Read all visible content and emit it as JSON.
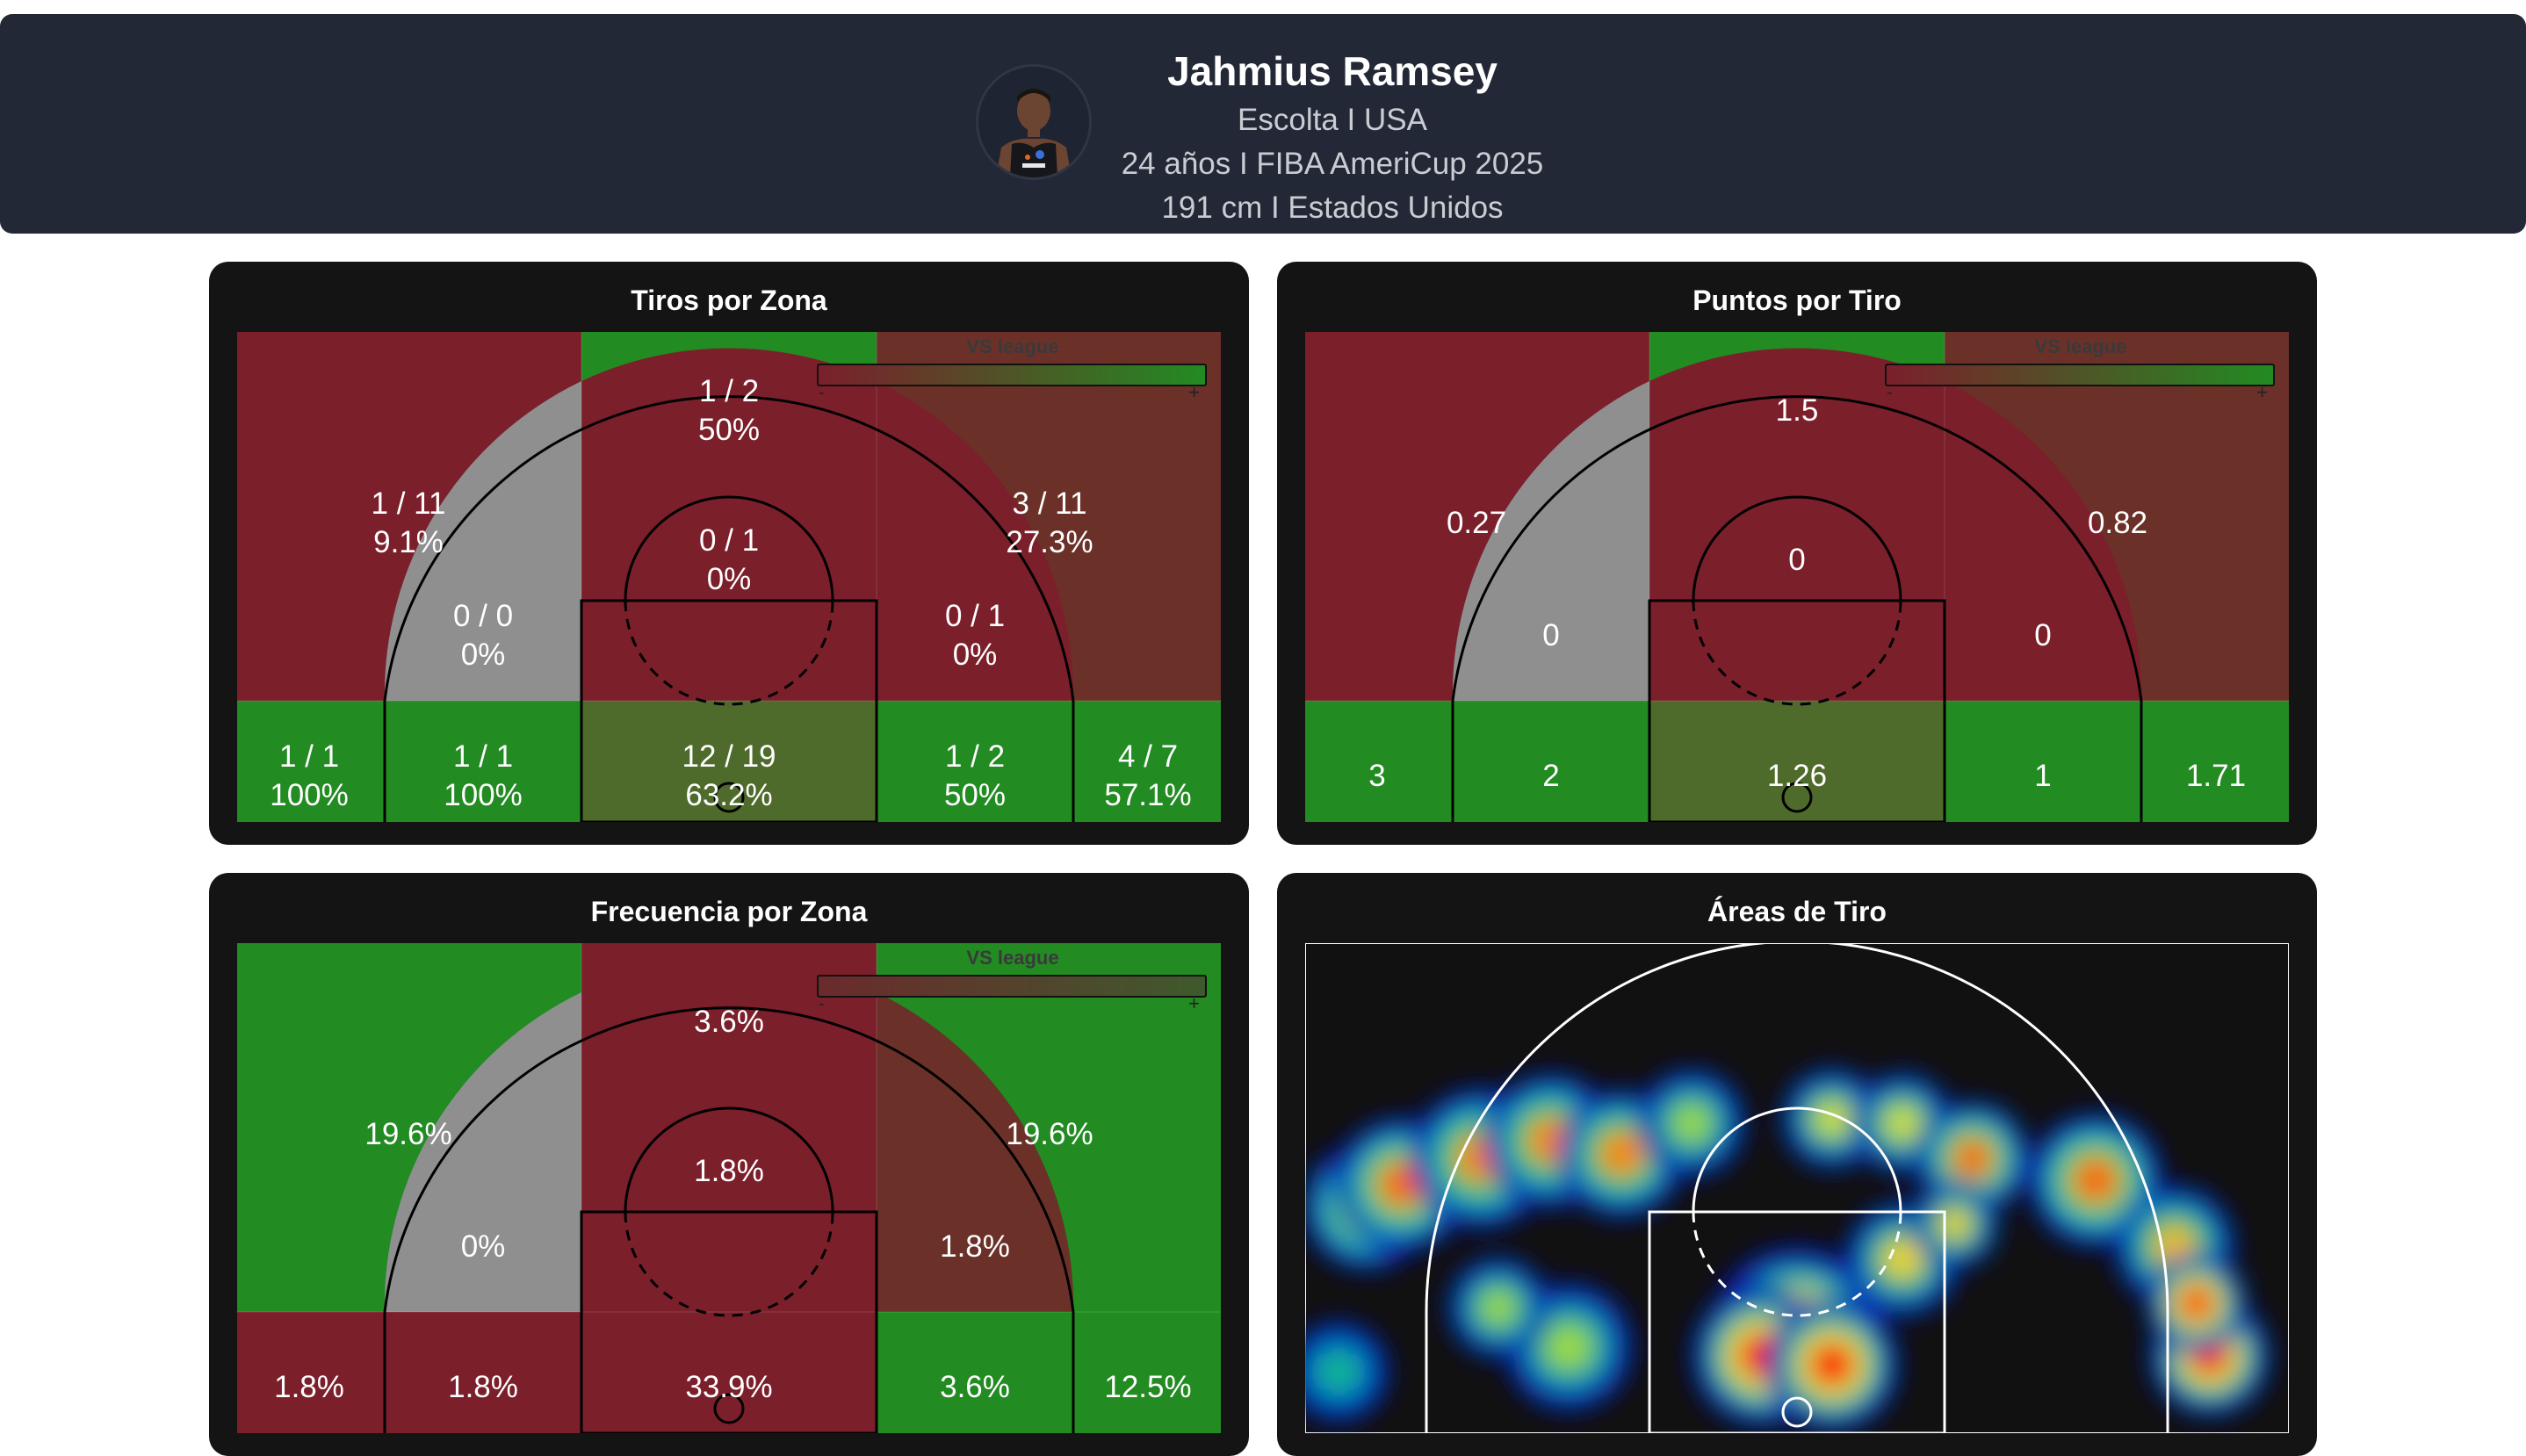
{
  "header": {
    "name": "Jahmius Ramsey",
    "line1": "Escolta I USA",
    "line2": "24 años I FIBA AmeriCup 2025",
    "line3": "191 cm I Estados Unidos"
  },
  "legend": {
    "title": "VS league",
    "min_label": "-",
    "max_label": "+"
  },
  "colors": {
    "green": "#228b22",
    "red": "#7b1f2b",
    "gray": "#8f8f8f",
    "brown_red": "#6b3129",
    "olive": "#4f6b2b",
    "court_line": "#000000",
    "heat_background": "#111111"
  },
  "panels": {
    "tiros": {
      "title": "Tiros por Zona"
    },
    "puntos": {
      "title": "Puntos por Tiro"
    },
    "frecuencia": {
      "title": "Frecuencia por Zona"
    },
    "areas": {
      "title": "Áreas de Tiro"
    }
  },
  "chart_data": [
    {
      "type": "heatmap",
      "title": "Tiros por Zona",
      "legend": "VS league",
      "zones": [
        {
          "zone": "above-break-3-left",
          "made": 1,
          "attempts": 11,
          "text": "1 / 11",
          "pct": "9.1%",
          "vs_league": "-"
        },
        {
          "zone": "above-break-3-center",
          "made": 1,
          "attempts": 2,
          "text": "1 / 2",
          "pct": "50%",
          "vs_league": "+"
        },
        {
          "zone": "above-break-3-right",
          "made": 3,
          "attempts": 11,
          "text": "3 / 11",
          "pct": "27.3%",
          "vs_league": "-"
        },
        {
          "zone": "mid-range-left",
          "made": 0,
          "attempts": 0,
          "text": "0 / 0",
          "pct": "0%",
          "vs_league": "none"
        },
        {
          "zone": "mid-range-center",
          "made": 0,
          "attempts": 1,
          "text": "0 / 1",
          "pct": "0%",
          "vs_league": "-"
        },
        {
          "zone": "mid-range-right",
          "made": 0,
          "attempts": 1,
          "text": "0 / 1",
          "pct": "0%",
          "vs_league": "-"
        },
        {
          "zone": "corner-3-left",
          "made": 1,
          "attempts": 1,
          "text": "1 / 1",
          "pct": "100%",
          "vs_league": "+"
        },
        {
          "zone": "short-mid-left",
          "made": 1,
          "attempts": 1,
          "text": "1 / 1",
          "pct": "100%",
          "vs_league": "+"
        },
        {
          "zone": "paint",
          "made": 12,
          "attempts": 19,
          "text": "12 / 19",
          "pct": "63.2%",
          "vs_league": "="
        },
        {
          "zone": "short-mid-right",
          "made": 1,
          "attempts": 2,
          "text": "1 / 2",
          "pct": "50%",
          "vs_league": "+"
        },
        {
          "zone": "corner-3-right",
          "made": 4,
          "attempts": 7,
          "text": "4 / 7",
          "pct": "57.1%",
          "vs_league": "+"
        }
      ]
    },
    {
      "type": "heatmap",
      "title": "Puntos por Tiro",
      "legend": "VS league",
      "zones": [
        {
          "zone": "above-break-3-left",
          "value": 0.27,
          "text": "0.27"
        },
        {
          "zone": "above-break-3-center",
          "value": 1.5,
          "text": "1.5"
        },
        {
          "zone": "above-break-3-right",
          "value": 0.82,
          "text": "0.82"
        },
        {
          "zone": "mid-range-left",
          "value": 0,
          "text": "0"
        },
        {
          "zone": "mid-range-center",
          "value": 0,
          "text": "0"
        },
        {
          "zone": "mid-range-right",
          "value": 0,
          "text": "0"
        },
        {
          "zone": "corner-3-left",
          "value": 3,
          "text": "3"
        },
        {
          "zone": "short-mid-left",
          "value": 2,
          "text": "2"
        },
        {
          "zone": "paint",
          "value": 1.26,
          "text": "1.26"
        },
        {
          "zone": "short-mid-right",
          "value": 1,
          "text": "1"
        },
        {
          "zone": "corner-3-right",
          "value": 1.71,
          "text": "1.71"
        }
      ]
    },
    {
      "type": "heatmap",
      "title": "Frecuencia por Zona",
      "legend": "VS league",
      "zones": [
        {
          "zone": "above-break-3-left",
          "value": 19.6,
          "text": "19.6%"
        },
        {
          "zone": "above-break-3-center",
          "value": 3.6,
          "text": "3.6%"
        },
        {
          "zone": "above-break-3-right",
          "value": 19.6,
          "text": "19.6%"
        },
        {
          "zone": "mid-range-left",
          "value": 0,
          "text": "0%"
        },
        {
          "zone": "mid-range-center",
          "value": 1.8,
          "text": "1.8%"
        },
        {
          "zone": "mid-range-right",
          "value": 1.8,
          "text": "1.8%"
        },
        {
          "zone": "corner-3-left",
          "value": 1.8,
          "text": "1.8%"
        },
        {
          "zone": "short-mid-left",
          "value": 1.8,
          "text": "1.8%"
        },
        {
          "zone": "paint",
          "value": 33.9,
          "text": "33.9%"
        },
        {
          "zone": "short-mid-right",
          "value": 3.6,
          "text": "3.6%"
        },
        {
          "zone": "corner-3-right",
          "value": 12.5,
          "text": "12.5%"
        }
      ]
    },
    {
      "type": "heatmap",
      "title": "Áreas de Tiro",
      "style": "density",
      "hotspots": [
        {
          "area": "left-wing-three",
          "intensity": 0.85
        },
        {
          "area": "left-upper-three",
          "intensity": 0.8
        },
        {
          "area": "top-left-three",
          "intensity": 0.55
        },
        {
          "area": "top-right-three",
          "intensity": 0.6
        },
        {
          "area": "right-upper-three",
          "intensity": 0.85
        },
        {
          "area": "right-wing",
          "intensity": 0.7
        },
        {
          "area": "right-corner-three",
          "intensity": 1.0
        },
        {
          "area": "left-corner-three",
          "intensity": 0.35
        },
        {
          "area": "paint-restricted-area",
          "intensity": 1.0
        },
        {
          "area": "left-short-mid",
          "intensity": 0.55
        },
        {
          "area": "right-elbow",
          "intensity": 0.65
        }
      ]
    }
  ]
}
